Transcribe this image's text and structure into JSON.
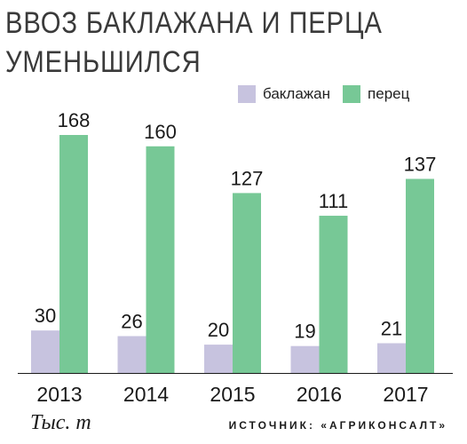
{
  "colors": {
    "eggplant": "#c7c3df",
    "pepper": "#77c896",
    "axis": "#1a1a1a"
  },
  "footer": {
    "unit": "Тыс. т",
    "source": "ИСТОЧНИК: «АГРИКОНСАЛТ»"
  },
  "chart_data": {
    "type": "bar",
    "title": "ВВОЗ БАКЛАЖАНА И ПЕРЦА УМЕНЬШИЛСЯ",
    "title_lines": [
      "ВВОЗ БАКЛАЖАНА И ПЕРЦА",
      "УМЕНЬШИЛСЯ"
    ],
    "categories": [
      "2013",
      "2014",
      "2015",
      "2016",
      "2017"
    ],
    "series": [
      {
        "name": "баклажан",
        "values": [
          30,
          26,
          20,
          19,
          21
        ]
      },
      {
        "name": "перец",
        "values": [
          168,
          160,
          127,
          111,
          137
        ]
      }
    ],
    "ylim": [
      0,
      168
    ],
    "grid": false,
    "legend_position": "top-right",
    "data_labels": true
  }
}
